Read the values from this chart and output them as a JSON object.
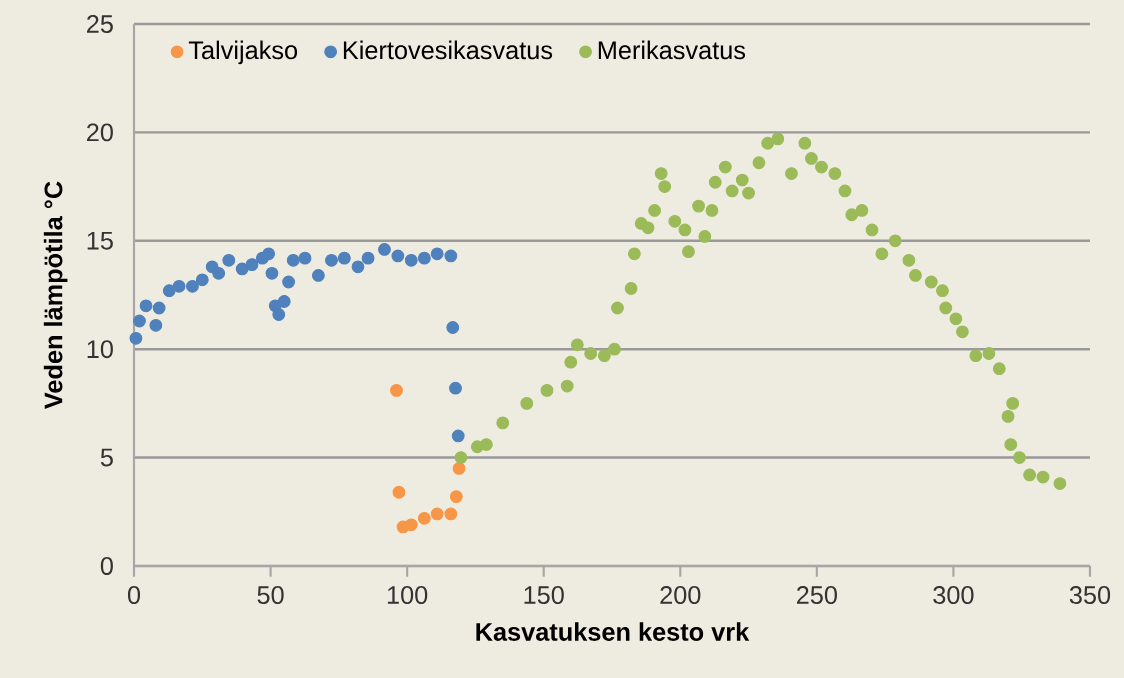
{
  "chart_data": {
    "type": "scatter",
    "xlabel": "Kasvatuksen kesto vrk",
    "ylabel": "Veden lämpötila °C",
    "xlim": [
      0,
      350
    ],
    "ylim": [
      0,
      25
    ],
    "xticks": [
      0,
      50,
      100,
      150,
      200,
      250,
      300,
      350
    ],
    "yticks": [
      0,
      5,
      10,
      15,
      20,
      25
    ],
    "grid": "y",
    "legend": "top left",
    "marker": "circle",
    "series": [
      {
        "name": "Talvijakso",
        "color": "#f79646",
        "x": [
          96.1,
          97,
          98.5,
          101.5,
          106.3,
          111,
          116,
          118,
          119
        ],
        "values": [
          8.1,
          3.4,
          1.8,
          1.9,
          2.2,
          2.4,
          2.4,
          3.2,
          4.5
        ]
      },
      {
        "name": "Kiertovesikasvatus",
        "color": "#4f81bd",
        "x": [
          0.7,
          2,
          4.4,
          8,
          9.2,
          12.9,
          16.5,
          21.4,
          25,
          28.6,
          31,
          34.7,
          39.6,
          43.2,
          47,
          49.3,
          50.5,
          51.7,
          53,
          55,
          56.6,
          58.3,
          62.6,
          67.5,
          72.3,
          77,
          82,
          85.7,
          91.7,
          96.6,
          101.5,
          106.3,
          111,
          116,
          116.7,
          117.7,
          118.7
        ],
        "values": [
          10.5,
          11.3,
          12.0,
          11.1,
          11.9,
          12.7,
          12.9,
          12.9,
          13.2,
          13.8,
          13.5,
          14.1,
          13.7,
          13.9,
          14.2,
          14.4,
          13.5,
          12.0,
          11.6,
          12.2,
          13.1,
          14.1,
          14.2,
          13.4,
          14.1,
          14.2,
          13.8,
          14.2,
          14.6,
          14.3,
          14.1,
          14.2,
          14.4,
          14.3,
          11.0,
          8.2,
          6.0
        ]
      },
      {
        "name": "Merikasvatus",
        "color": "#9bbb59",
        "x": [
          119.7,
          125.7,
          129,
          135,
          143.8,
          151.2,
          158.6,
          159.9,
          162.3,
          167.2,
          172.2,
          175.9,
          177,
          182,
          183.2,
          185.7,
          188.2,
          190.6,
          193,
          194.3,
          198,
          201.7,
          203,
          206.7,
          209,
          211.6,
          212.8,
          216.5,
          219,
          222.7,
          225,
          228.8,
          232,
          235.7,
          240.7,
          245.6,
          248,
          251.7,
          256.6,
          260.3,
          262.8,
          266.5,
          270.2,
          273.8,
          278.7,
          283.7,
          286.1,
          291.9,
          296,
          297.2,
          300.9,
          303.3,
          308.2,
          313,
          316.8,
          320,
          321,
          321.7,
          324.2,
          327.9,
          332.8,
          339
        ],
        "values": [
          5.0,
          5.5,
          5.6,
          6.6,
          7.5,
          8.1,
          8.3,
          9.4,
          10.2,
          9.8,
          9.7,
          10.0,
          11.9,
          12.8,
          14.4,
          15.8,
          15.6,
          16.4,
          18.1,
          17.5,
          15.9,
          15.5,
          14.5,
          16.6,
          15.2,
          16.4,
          17.7,
          18.4,
          17.3,
          17.8,
          17.2,
          18.6,
          19.5,
          19.7,
          18.1,
          19.5,
          18.8,
          18.4,
          18.1,
          17.3,
          16.2,
          16.4,
          15.5,
          14.4,
          15.0,
          14.1,
          13.4,
          13.1,
          12.7,
          11.9,
          11.4,
          10.8,
          9.7,
          9.8,
          9.1,
          6.9,
          5.6,
          7.5,
          5.0,
          4.2,
          4.1,
          3.8
        ]
      }
    ]
  }
}
